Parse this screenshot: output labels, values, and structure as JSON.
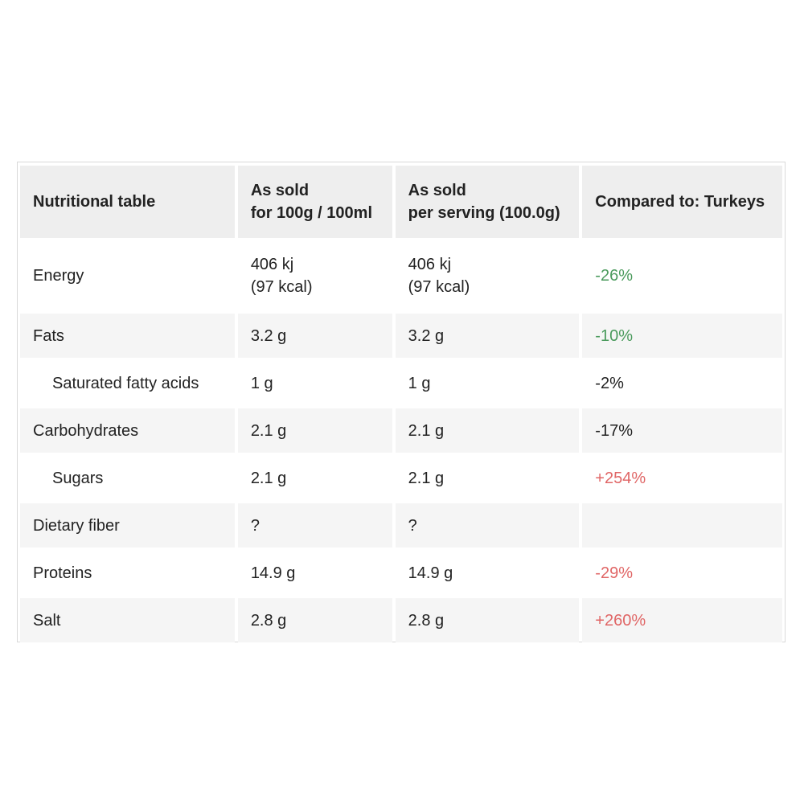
{
  "table": {
    "headers": {
      "label": "Nutritional table",
      "per100_line1": "As sold",
      "per100_line2": "for 100g / 100ml",
      "perServing_line1": "As sold",
      "perServing_line2": "per serving (100.0g)",
      "compared": "Compared to: Turkeys"
    },
    "rows": [
      {
        "name": "Energy",
        "per100_line1": "406 kj",
        "per100_line2": "(97 kcal)",
        "perServing_line1": "406 kj",
        "perServing_line2": "(97 kcal)",
        "compare": "-26%"
      },
      {
        "name": "Fats",
        "per100": "3.2 g",
        "perServing": "3.2 g",
        "compare": "-10%"
      },
      {
        "name": "Saturated fatty acids",
        "per100": "1 g",
        "perServing": "1 g",
        "compare": "-2%"
      },
      {
        "name": "Carbohydrates",
        "per100": "2.1 g",
        "perServing": "2.1 g",
        "compare": "-17%"
      },
      {
        "name": "Sugars",
        "per100": "2.1 g",
        "perServing": "2.1 g",
        "compare": "+254%"
      },
      {
        "name": "Dietary fiber",
        "per100": "?",
        "perServing": "?",
        "compare": ""
      },
      {
        "name": "Proteins",
        "per100": "14.9 g",
        "perServing": "14.9 g",
        "compare": "-29%"
      },
      {
        "name": "Salt",
        "per100": "2.8 g",
        "perServing": "2.8 g",
        "compare": "+260%"
      }
    ]
  },
  "colors": {
    "good": "#4a9a5c",
    "bad": "#e06666",
    "neutral": "#222222"
  }
}
